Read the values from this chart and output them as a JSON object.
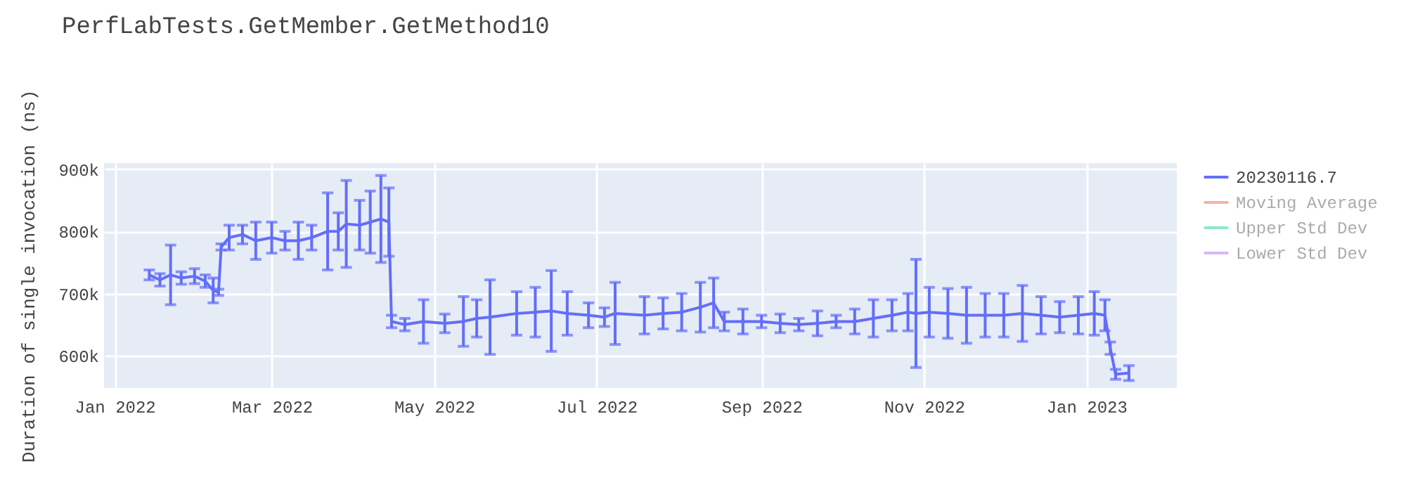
{
  "chart_data": {
    "type": "line",
    "title": "PerfLabTests.GetMember.GetMethod10",
    "ylabel": "Duration of single invocation (ns)",
    "x": [
      "2022-01-14",
      "2022-01-18",
      "2022-01-22",
      "2022-01-26",
      "2022-01-31",
      "2022-02-04",
      "2022-02-07",
      "2022-02-09",
      "2022-02-10",
      "2022-02-13",
      "2022-02-18",
      "2022-02-23",
      "2022-03-01",
      "2022-03-06",
      "2022-03-11",
      "2022-03-16",
      "2022-03-22",
      "2022-03-26",
      "2022-03-29",
      "2022-04-03",
      "2022-04-07",
      "2022-04-11",
      "2022-04-14",
      "2022-04-15",
      "2022-04-20",
      "2022-04-27",
      "2022-05-05",
      "2022-05-12",
      "2022-05-17",
      "2022-05-22",
      "2022-06-01",
      "2022-06-08",
      "2022-06-14",
      "2022-06-20",
      "2022-06-28",
      "2022-07-04",
      "2022-07-08",
      "2022-07-19",
      "2022-07-26",
      "2022-08-02",
      "2022-08-09",
      "2022-08-14",
      "2022-08-18",
      "2022-08-25",
      "2022-09-01",
      "2022-09-08",
      "2022-09-15",
      "2022-09-22",
      "2022-09-29",
      "2022-10-06",
      "2022-10-13",
      "2022-10-20",
      "2022-10-26",
      "2022-10-29",
      "2022-11-03",
      "2022-11-10",
      "2022-11-17",
      "2022-11-24",
      "2022-12-01",
      "2022-12-08",
      "2022-12-15",
      "2022-12-22",
      "2022-12-29",
      "2023-01-04",
      "2023-01-08",
      "2023-01-10",
      "2023-01-12",
      "2023-01-17"
    ],
    "series": [
      {
        "name": "20230116.7",
        "color": "#636efa",
        "values": [
          730000,
          722000,
          730000,
          725000,
          728000,
          720000,
          705000,
          702000,
          775000,
          790000,
          795000,
          785000,
          790000,
          785000,
          785000,
          790000,
          800000,
          800000,
          812000,
          810000,
          815000,
          820000,
          815000,
          655000,
          650000,
          655000,
          652000,
          655000,
          660000,
          662000,
          668000,
          670000,
          672000,
          668000,
          665000,
          662000,
          668000,
          665000,
          668000,
          670000,
          678000,
          685000,
          655000,
          655000,
          655000,
          652000,
          650000,
          652000,
          655000,
          655000,
          660000,
          665000,
          670000,
          668000,
          670000,
          668000,
          665000,
          665000,
          665000,
          668000,
          665000,
          662000,
          665000,
          668000,
          665000,
          612000,
          570000,
          572000
        ],
        "errors": [
          8000,
          10000,
          48000,
          10000,
          12000,
          10000,
          20000,
          5000,
          5000,
          20000,
          15000,
          30000,
          25000,
          15000,
          30000,
          20000,
          62000,
          30000,
          70000,
          40000,
          50000,
          70000,
          55000,
          10000,
          10000,
          35000,
          15000,
          40000,
          30000,
          60000,
          35000,
          40000,
          65000,
          35000,
          20000,
          15000,
          50000,
          30000,
          25000,
          30000,
          40000,
          40000,
          15000,
          20000,
          10000,
          15000,
          10000,
          20000,
          10000,
          20000,
          30000,
          25000,
          30000,
          87000,
          40000,
          40000,
          45000,
          35000,
          35000,
          45000,
          30000,
          25000,
          30000,
          35000,
          25000,
          10000,
          8000,
          12000
        ]
      },
      {
        "name": "Moving Average",
        "color": "#ef553b",
        "values": [
          null,
          null,
          null,
          null,
          null,
          null,
          null,
          null,
          null,
          null,
          null,
          null,
          null,
          null,
          null,
          null,
          null,
          null,
          null,
          null,
          null,
          null,
          null,
          null,
          null,
          null,
          null,
          null,
          null,
          null,
          null,
          null,
          null,
          null,
          null,
          null,
          null,
          null,
          null,
          null,
          null,
          null,
          null,
          null,
          null,
          null,
          null,
          null,
          null,
          null,
          null,
          null,
          null,
          null,
          null,
          null,
          null,
          null,
          null,
          null,
          null,
          null,
          null,
          null,
          null,
          null,
          null,
          null
        ]
      },
      {
        "name": "Upper Std Dev",
        "color": "#00cc96",
        "values": [
          null,
          null,
          null,
          null,
          null,
          null,
          null,
          null,
          null,
          null,
          null,
          null,
          null,
          null,
          null,
          null,
          null,
          null,
          null,
          null,
          null,
          null,
          null,
          null,
          null,
          null,
          null,
          null,
          null,
          null,
          null,
          null,
          null,
          null,
          null,
          null,
          null,
          null,
          null,
          null,
          null,
          null,
          null,
          null,
          null,
          null,
          null,
          null,
          null,
          null,
          null,
          null,
          null,
          null,
          null,
          null,
          null,
          null,
          null,
          null,
          null,
          null,
          null,
          null,
          null,
          null,
          null,
          null
        ]
      },
      {
        "name": "Lower Std Dev",
        "color": "#ab63fa",
        "values": [
          null,
          null,
          null,
          null,
          null,
          null,
          null,
          null,
          null,
          null,
          null,
          null,
          null,
          null,
          null,
          null,
          null,
          null,
          null,
          null,
          null,
          null,
          null,
          null,
          null,
          null,
          null,
          null,
          null,
          null,
          null,
          null,
          null,
          null,
          null,
          null,
          null,
          null,
          null,
          null,
          null,
          null,
          null,
          null,
          null,
          null,
          null,
          null,
          null,
          null,
          null,
          null,
          null,
          null,
          null,
          null,
          null,
          null,
          null,
          null,
          null,
          null,
          null,
          null,
          null,
          null,
          null,
          null
        ]
      }
    ],
    "xlim": [
      "2021-12-28",
      "2023-02-04"
    ],
    "xticks": [
      {
        "value": "2022-01-01",
        "label": "Jan 2022"
      },
      {
        "value": "2022-03-01",
        "label": "Mar 2022"
      },
      {
        "value": "2022-05-01",
        "label": "May 2022"
      },
      {
        "value": "2022-07-01",
        "label": "Jul 2022"
      },
      {
        "value": "2022-09-01",
        "label": "Sep 2022"
      },
      {
        "value": "2022-11-01",
        "label": "Nov 2022"
      },
      {
        "value": "2023-01-01",
        "label": "Jan 2023"
      }
    ],
    "ylim": [
      548000,
      910000
    ],
    "yticks": [
      {
        "value": 600000,
        "label": "600k"
      },
      {
        "value": 700000,
        "label": "700k"
      },
      {
        "value": 800000,
        "label": "800k"
      },
      {
        "value": 900000,
        "label": "900k"
      }
    ],
    "grid": true,
    "legend": "right",
    "marker": "none",
    "line_style": "solid"
  }
}
